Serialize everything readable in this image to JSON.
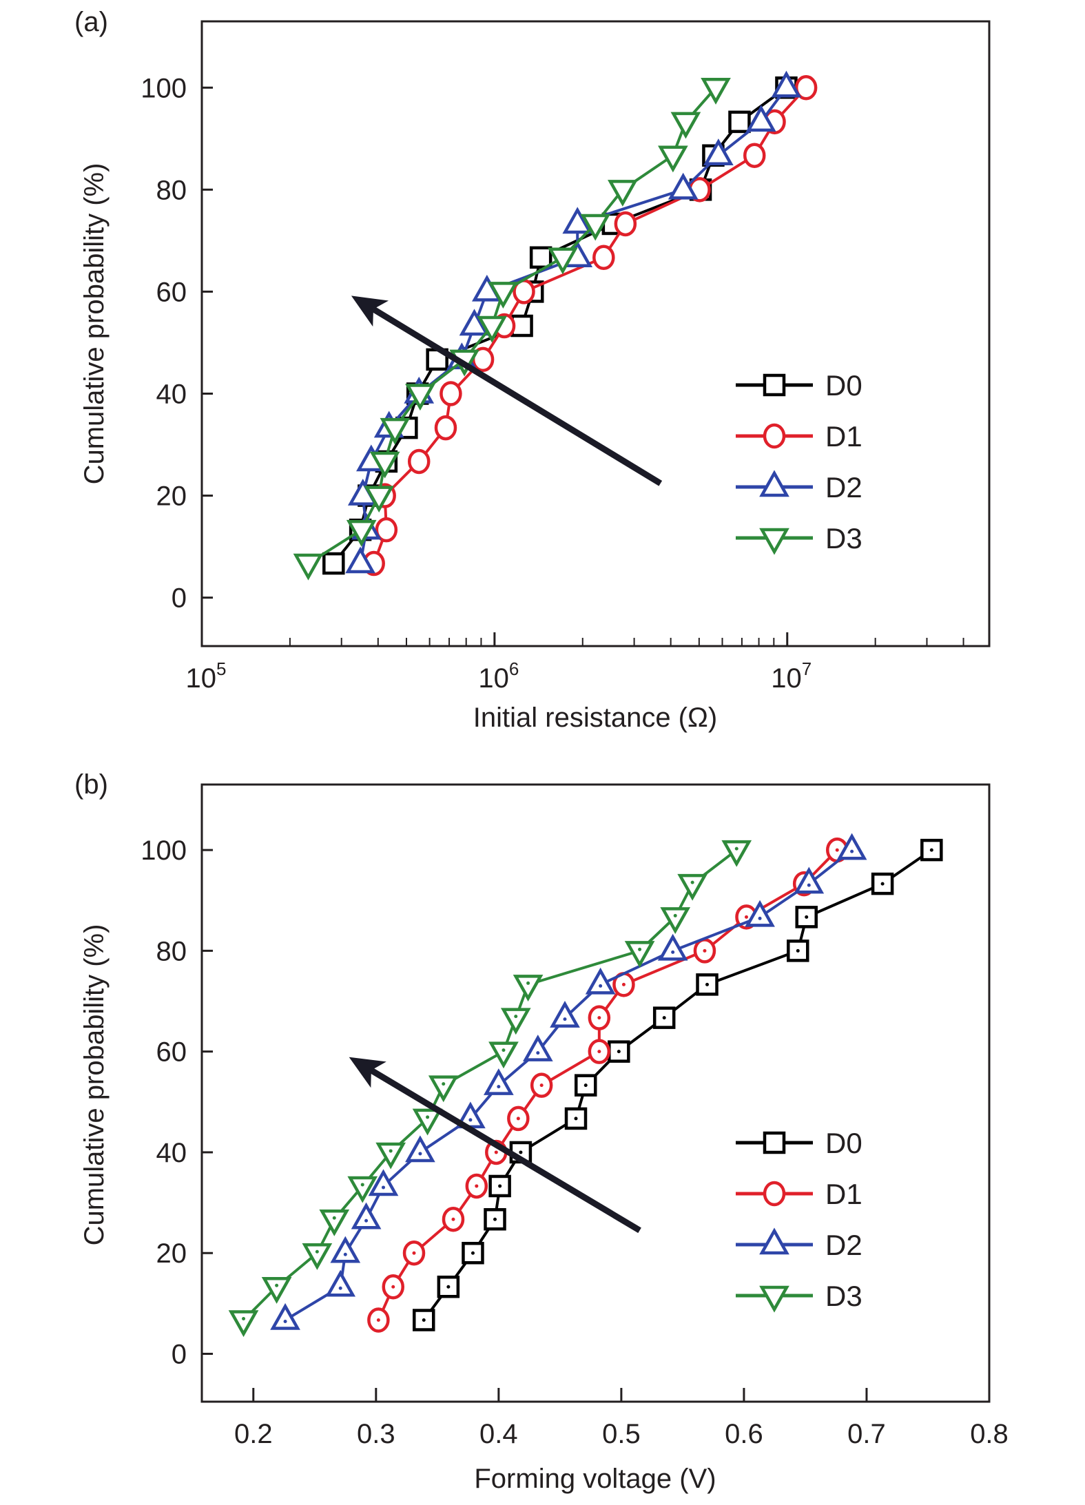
{
  "chart_data": [
    {
      "type": "line",
      "panel_label": "(a)",
      "xlabel": "Initial resistance (Ω)",
      "ylabel": "Cumulative probability (%)",
      "xscale": "log",
      "xlim": [
        100000,
        49000000
      ],
      "ylim": [
        -9.5,
        113
      ],
      "xticks": [
        {
          "value": 100000,
          "base": "10",
          "exp": "5"
        },
        {
          "value": 1000000,
          "base": "10",
          "exp": "6"
        },
        {
          "value": 10000000,
          "base": "10",
          "exp": "7"
        }
      ],
      "yticks": [
        0,
        20,
        40,
        60,
        80,
        100
      ],
      "grid": false,
      "legend_position": "right-center",
      "arrow": {
        "from": [
          3690000,
          22.4
        ],
        "to": [
          324000,
          59.2
        ],
        "color": "#1a1a26"
      },
      "series": [
        {
          "name": "D0",
          "marker": "square",
          "color": "#000000",
          "x": [
            282000,
            348000,
            372000,
            427000,
            501000,
            546000,
            637000,
            1240000,
            1350000,
            1440000,
            2540000,
            5060000,
            5590000,
            6870000,
            9930000
          ],
          "y": [
            6.7,
            13.3,
            20,
            26.7,
            33.3,
            40,
            46.7,
            53.3,
            60,
            66.7,
            73.3,
            80,
            86.7,
            93.3,
            100
          ]
        },
        {
          "name": "D1",
          "marker": "circle",
          "color": "#e0202a",
          "x": [
            387000,
            427000,
            422000,
            552000,
            681000,
            709000,
            913000,
            1080000,
            1260000,
            2360000,
            2800000,
            5020000,
            7730000,
            9060000,
            11600000
          ],
          "y": [
            6.7,
            13.3,
            20,
            26.7,
            33.3,
            40,
            46.7,
            53.3,
            60,
            66.7,
            73.3,
            80,
            86.7,
            93.3,
            100
          ]
        },
        {
          "name": "D2",
          "marker": "triangle-up",
          "color": "#2e45a8",
          "x": [
            348000,
            365000,
            355000,
            379000,
            436000,
            552000,
            773000,
            853000,
            942000,
            1920000,
            1920000,
            4410000,
            5820000,
            8140000,
            9930000
          ],
          "y": [
            6.7,
            13.3,
            20,
            26.7,
            33.3,
            40,
            46.7,
            53.3,
            60,
            66.7,
            73.3,
            80,
            86.7,
            93.3,
            100
          ]
        },
        {
          "name": "D3",
          "marker": "triangle-down",
          "color": "#2e8a3a",
          "x": [
            231000,
            351000,
            403000,
            422000,
            457000,
            557000,
            789000,
            980000,
            1070000,
            1710000,
            2210000,
            2740000,
            4070000,
            4500000,
            5700000
          ],
          "y": [
            6.7,
            13.3,
            20,
            26.7,
            33.3,
            40,
            46.7,
            53.3,
            60,
            66.7,
            73.3,
            80,
            86.7,
            93.3,
            100
          ]
        }
      ]
    },
    {
      "type": "line",
      "panel_label": "(b)",
      "xlabel": "Forming voltage (V)",
      "ylabel": "Cumulative probability (%)",
      "xscale": "linear",
      "xlim": [
        0.158,
        0.8
      ],
      "ylim": [
        -9.5,
        113
      ],
      "xticks": [
        {
          "value": 0.2,
          "label": "0.2"
        },
        {
          "value": 0.3,
          "label": "0.3"
        },
        {
          "value": 0.4,
          "label": "0.4"
        },
        {
          "value": 0.5,
          "label": "0.5"
        },
        {
          "value": 0.6,
          "label": "0.6"
        },
        {
          "value": 0.7,
          "label": "0.7"
        },
        {
          "value": 0.8,
          "label": "0.8"
        }
      ],
      "yticks": [
        0,
        20,
        40,
        60,
        80,
        100
      ],
      "grid": false,
      "legend_position": "right-center",
      "arrow": {
        "from": [
          0.515,
          24.5
        ],
        "to": [
          0.278,
          58.9
        ],
        "color": "#1a1a26"
      },
      "series": [
        {
          "name": "D0",
          "marker": "square-dot",
          "color": "#000000",
          "x": [
            0.339,
            0.359,
            0.379,
            0.397,
            0.401,
            0.418,
            0.463,
            0.471,
            0.498,
            0.535,
            0.57,
            0.644,
            0.651,
            0.713,
            0.753
          ],
          "y": [
            6.7,
            13.3,
            20,
            26.7,
            33.3,
            40,
            46.7,
            53.3,
            60,
            66.7,
            73.3,
            80,
            86.7,
            93.3,
            100
          ]
        },
        {
          "name": "D1",
          "marker": "circle-dot",
          "color": "#e0202a",
          "x": [
            0.302,
            0.314,
            0.331,
            0.363,
            0.382,
            0.398,
            0.416,
            0.435,
            0.482,
            0.482,
            0.502,
            0.568,
            0.602,
            0.649,
            0.676
          ],
          "y": [
            6.7,
            13.3,
            20,
            26.7,
            33.3,
            40,
            46.7,
            53.3,
            60,
            66.7,
            73.3,
            80,
            86.7,
            93.3,
            100
          ]
        },
        {
          "name": "D2",
          "marker": "triangle-up-dot",
          "color": "#2e45a8",
          "x": [
            0.226,
            0.271,
            0.275,
            0.292,
            0.306,
            0.336,
            0.377,
            0.4,
            0.432,
            0.454,
            0.483,
            0.542,
            0.613,
            0.653,
            0.688
          ],
          "y": [
            6.7,
            13.3,
            20,
            26.7,
            33.3,
            40,
            46.7,
            53.3,
            60,
            66.7,
            73.3,
            80,
            86.7,
            93.3,
            100
          ]
        },
        {
          "name": "D3",
          "marker": "triangle-down-dot",
          "color": "#2e8a3a",
          "x": [
            0.192,
            0.219,
            0.252,
            0.266,
            0.289,
            0.312,
            0.342,
            0.355,
            0.404,
            0.414,
            0.424,
            0.515,
            0.544,
            0.558,
            0.594
          ],
          "y": [
            6.7,
            13.3,
            20,
            26.7,
            33.3,
            40,
            46.7,
            53.3,
            60,
            66.7,
            73.3,
            80,
            86.7,
            93.3,
            100
          ]
        }
      ]
    }
  ]
}
